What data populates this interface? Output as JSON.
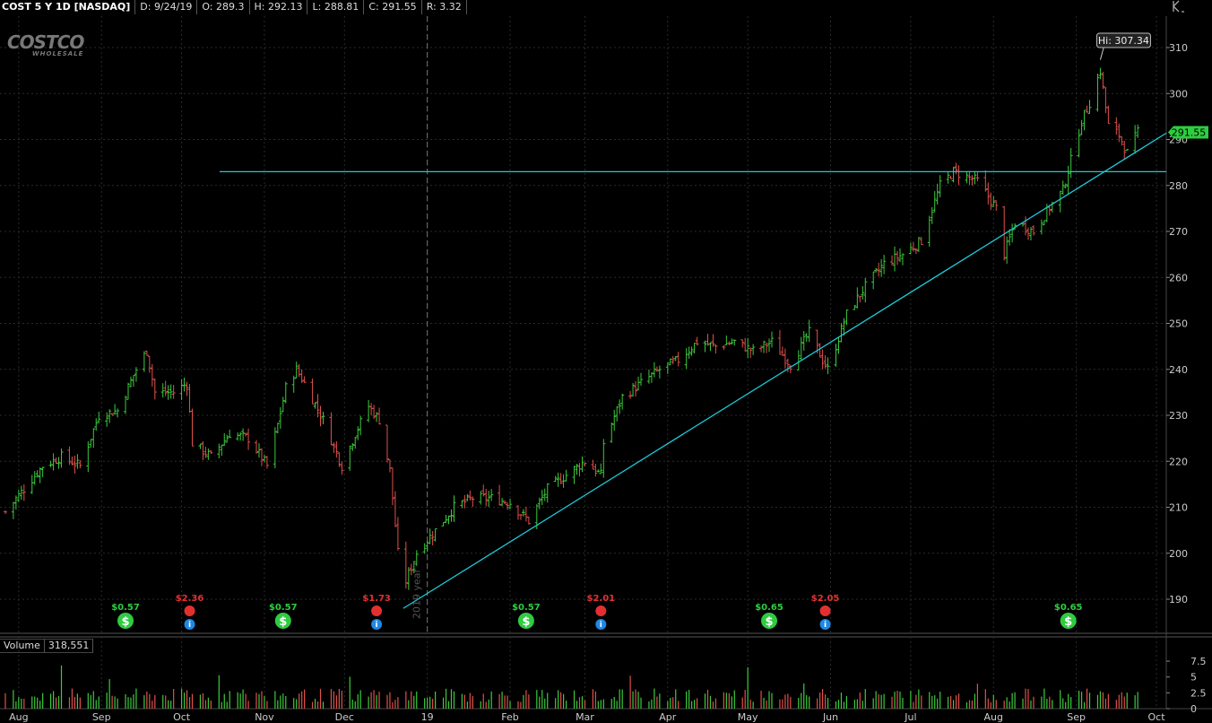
{
  "header": {
    "symbol": "COST 5 Y 1D [NASDAQ]",
    "date": "D: 9/24/19",
    "open": "O: 289.3",
    "high": "H: 292.13",
    "low": "L: 288.81",
    "close": "C: 291.55",
    "range": "R: 3.32"
  },
  "logo": {
    "main": "COSTCO",
    "sub": "WHOLESALE"
  },
  "volume": {
    "label": "Volume",
    "value": "318,551"
  },
  "colors": {
    "up": "#3ccb3c",
    "down": "#e0504b",
    "line": "#1fc8d6",
    "grid": "#2a2a2a",
    "bubble_up": "#2ecc40",
    "bubble_alert": "#e23030",
    "bubble_info": "#1e88e5"
  },
  "chart_data": {
    "type": "ohlc",
    "title": "COST 5 Y 1D [NASDAQ]",
    "ylim": [
      185,
      315
    ],
    "yticks": [
      190,
      200,
      210,
      220,
      230,
      240,
      250,
      260,
      270,
      280,
      290,
      300,
      310
    ],
    "x_axis_labels": [
      "Aug",
      "Sep",
      "Oct",
      "Nov",
      "Dec",
      "19",
      "Feb",
      "Mar",
      "Apr",
      "May",
      "Jun",
      "Jul",
      "Aug",
      "Sep",
      "Oct"
    ],
    "year_marker": "2019 year",
    "close_series": [
      {
        "date": "2018-07-27",
        "close": 209
      },
      {
        "date": "2018-08-03",
        "close": 214
      },
      {
        "date": "2018-08-10",
        "close": 219
      },
      {
        "date": "2018-08-17",
        "close": 221
      },
      {
        "date": "2018-08-24",
        "close": 219
      },
      {
        "date": "2018-08-31",
        "close": 230
      },
      {
        "date": "2018-09-07",
        "close": 231
      },
      {
        "date": "2018-09-14",
        "close": 240
      },
      {
        "date": "2018-09-18",
        "close": 244
      },
      {
        "date": "2018-09-21",
        "close": 235
      },
      {
        "date": "2018-09-28",
        "close": 235
      },
      {
        "date": "2018-10-03",
        "close": 237
      },
      {
        "date": "2018-10-05",
        "close": 224
      },
      {
        "date": "2018-10-12",
        "close": 221
      },
      {
        "date": "2018-10-19",
        "close": 226
      },
      {
        "date": "2018-10-26",
        "close": 225
      },
      {
        "date": "2018-11-02",
        "close": 219
      },
      {
        "date": "2018-11-06",
        "close": 228
      },
      {
        "date": "2018-11-09",
        "close": 236
      },
      {
        "date": "2018-11-13",
        "close": 240
      },
      {
        "date": "2018-11-16",
        "close": 237
      },
      {
        "date": "2018-11-23",
        "close": 229
      },
      {
        "date": "2018-11-30",
        "close": 219
      },
      {
        "date": "2018-12-05",
        "close": 226
      },
      {
        "date": "2018-12-10",
        "close": 232
      },
      {
        "date": "2018-12-14",
        "close": 229
      },
      {
        "date": "2018-12-18",
        "close": 218
      },
      {
        "date": "2018-12-21",
        "close": 200
      },
      {
        "date": "2018-12-24",
        "close": 194
      },
      {
        "date": "2018-12-28",
        "close": 200
      },
      {
        "date": "2019-01-04",
        "close": 205
      },
      {
        "date": "2019-01-11",
        "close": 210
      },
      {
        "date": "2019-01-18",
        "close": 212
      },
      {
        "date": "2019-01-25",
        "close": 212
      },
      {
        "date": "2019-02-01",
        "close": 211
      },
      {
        "date": "2019-02-08",
        "close": 207
      },
      {
        "date": "2019-02-15",
        "close": 214
      },
      {
        "date": "2019-02-22",
        "close": 217
      },
      {
        "date": "2019-03-01",
        "close": 220
      },
      {
        "date": "2019-03-07",
        "close": 217
      },
      {
        "date": "2019-03-08",
        "close": 224
      },
      {
        "date": "2019-03-15",
        "close": 234
      },
      {
        "date": "2019-03-22",
        "close": 237
      },
      {
        "date": "2019-03-29",
        "close": 240
      },
      {
        "date": "2019-04-05",
        "close": 242
      },
      {
        "date": "2019-04-12",
        "close": 246
      },
      {
        "date": "2019-04-19",
        "close": 245
      },
      {
        "date": "2019-04-26",
        "close": 246
      },
      {
        "date": "2019-05-03",
        "close": 244
      },
      {
        "date": "2019-05-10",
        "close": 246
      },
      {
        "date": "2019-05-17",
        "close": 241
      },
      {
        "date": "2019-05-24",
        "close": 248
      },
      {
        "date": "2019-05-29",
        "close": 242
      },
      {
        "date": "2019-05-31",
        "close": 240
      },
      {
        "date": "2019-06-07",
        "close": 252
      },
      {
        "date": "2019-06-14",
        "close": 258
      },
      {
        "date": "2019-06-21",
        "close": 263
      },
      {
        "date": "2019-06-28",
        "close": 265
      },
      {
        "date": "2019-07-05",
        "close": 268
      },
      {
        "date": "2019-07-12",
        "close": 280
      },
      {
        "date": "2019-07-17",
        "close": 283
      },
      {
        "date": "2019-07-26",
        "close": 281
      },
      {
        "date": "2019-08-02",
        "close": 275
      },
      {
        "date": "2019-08-05",
        "close": 265
      },
      {
        "date": "2019-08-09",
        "close": 272
      },
      {
        "date": "2019-08-16",
        "close": 270
      },
      {
        "date": "2019-08-23",
        "close": 276
      },
      {
        "date": "2019-08-27",
        "close": 279
      },
      {
        "date": "2019-09-03",
        "close": 294
      },
      {
        "date": "2019-09-06",
        "close": 298
      },
      {
        "date": "2019-09-10",
        "close": 305
      },
      {
        "date": "2019-09-13",
        "close": 293
      },
      {
        "date": "2019-09-17",
        "close": 291
      },
      {
        "date": "2019-09-20",
        "close": 287
      },
      {
        "date": "2019-09-24",
        "close": 291.55
      }
    ],
    "horizontal_line": 283,
    "trendline": {
      "from": {
        "date": "2018-12-24",
        "price": 188
      },
      "to": {
        "date": "2019-09-30",
        "price": 291
      }
    },
    "high_label": "Hi: 307.34",
    "last_price": "291.55",
    "volume_ylim": [
      0,
      8.5
    ],
    "volume_ticks": [
      "7.5",
      "5",
      "2.5",
      "0"
    ],
    "events": [
      {
        "date": "2018-09-10",
        "type": "dividend",
        "label": "$0.57"
      },
      {
        "date": "2018-10-04",
        "type": "earnings",
        "label": "$2.36"
      },
      {
        "date": "2018-11-08",
        "type": "dividend",
        "label": "$0.57"
      },
      {
        "date": "2018-12-13",
        "type": "earnings",
        "label": "$1.73"
      },
      {
        "date": "2019-02-07",
        "type": "dividend",
        "label": "$0.57"
      },
      {
        "date": "2019-03-07",
        "type": "earnings",
        "label": "$2.01"
      },
      {
        "date": "2019-05-09",
        "type": "dividend",
        "label": "$0.65"
      },
      {
        "date": "2019-05-30",
        "type": "earnings",
        "label": "$2.05"
      },
      {
        "date": "2019-08-29",
        "type": "dividend",
        "label": "$0.65"
      }
    ]
  }
}
